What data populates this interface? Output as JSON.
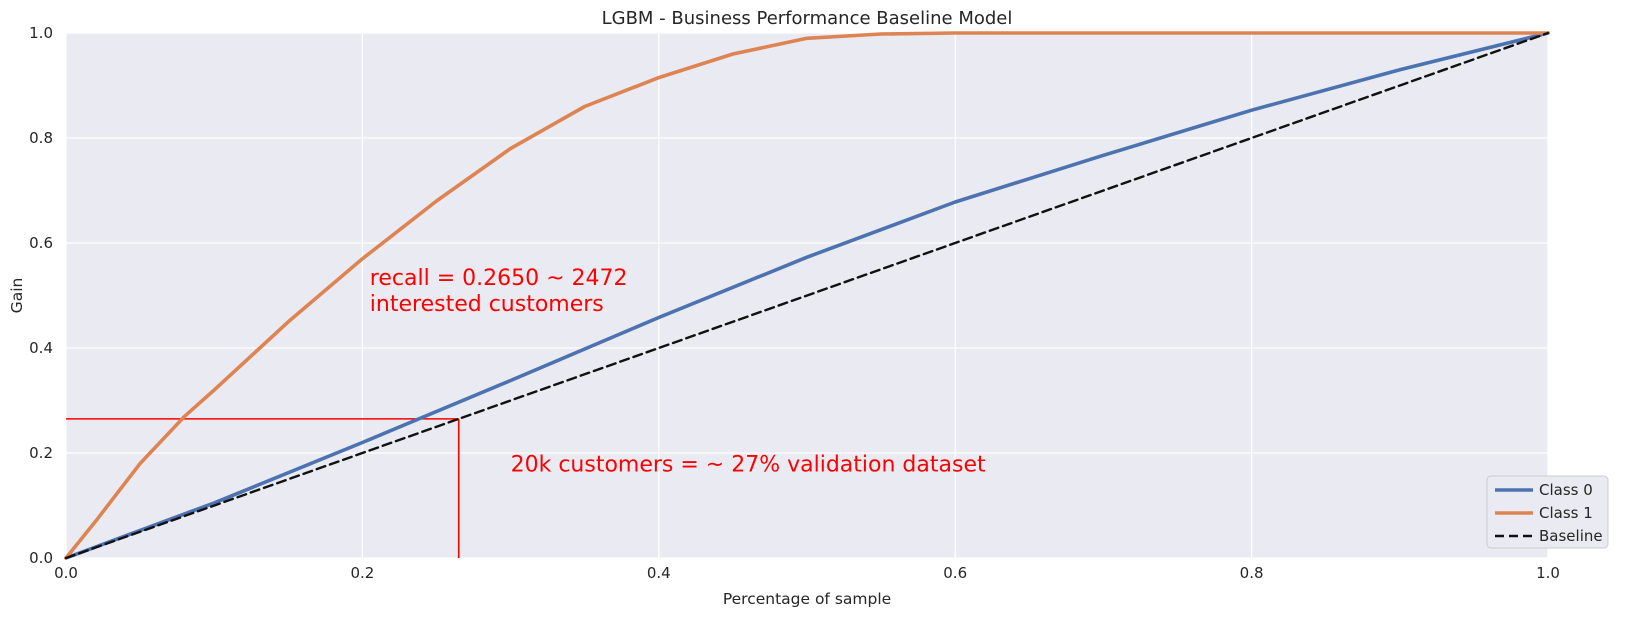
{
  "chart_data": {
    "type": "line",
    "title": "LGBM - Business Performance Baseline Model",
    "xlabel": "Percentage of sample",
    "ylabel": "Gain",
    "xlim": [
      0,
      1
    ],
    "ylim": [
      0,
      1
    ],
    "x_ticks": [
      "0.0",
      "0.2",
      "0.4",
      "0.6",
      "0.8",
      "1.0"
    ],
    "y_ticks": [
      "0.0",
      "0.2",
      "0.4",
      "0.6",
      "0.8",
      "1.0"
    ],
    "grid": true,
    "legend_position": "bottom-right",
    "series": [
      {
        "name": "Class 0",
        "color": "#4c72b0",
        "style": "solid",
        "x": [
          0,
          0.1,
          0.2,
          0.3,
          0.4,
          0.5,
          0.6,
          0.7,
          0.8,
          0.9,
          1.0
        ],
        "y": [
          0,
          0.105,
          0.22,
          0.338,
          0.458,
          0.573,
          0.678,
          0.767,
          0.853,
          0.93,
          1.0
        ]
      },
      {
        "name": "Class 1",
        "color": "#dd8452",
        "style": "solid",
        "x": [
          0,
          0.02,
          0.05,
          0.08,
          0.1,
          0.15,
          0.2,
          0.25,
          0.3,
          0.35,
          0.4,
          0.45,
          0.5,
          0.55,
          0.6,
          0.7,
          0.8,
          0.9,
          1.0
        ],
        "y": [
          0,
          0.07,
          0.18,
          0.27,
          0.32,
          0.45,
          0.57,
          0.68,
          0.78,
          0.86,
          0.915,
          0.96,
          0.99,
          0.998,
          1.0,
          1.0,
          1.0,
          1.0,
          1.0
        ]
      },
      {
        "name": "Baseline",
        "color": "#111111",
        "style": "dashed",
        "x": [
          0,
          1
        ],
        "y": [
          0,
          1
        ]
      }
    ],
    "reference_lines": {
      "color": "#ff0000",
      "horizontal": {
        "y": 0.265,
        "x_from": 0,
        "x_to": 0.265
      },
      "vertical": {
        "x": 0.265,
        "y_from": 0,
        "y_to": 0.265
      }
    },
    "annotations": [
      {
        "lines": [
          "recall = 0.2650 ~ 2472",
          "interested customers"
        ],
        "x": 0.205,
        "y": 0.52,
        "color": "#ff0000"
      },
      {
        "lines": [
          "20k customers = ~ 27% validation dataset"
        ],
        "x": 0.3,
        "y": 0.165,
        "color": "#ff0000"
      }
    ]
  }
}
